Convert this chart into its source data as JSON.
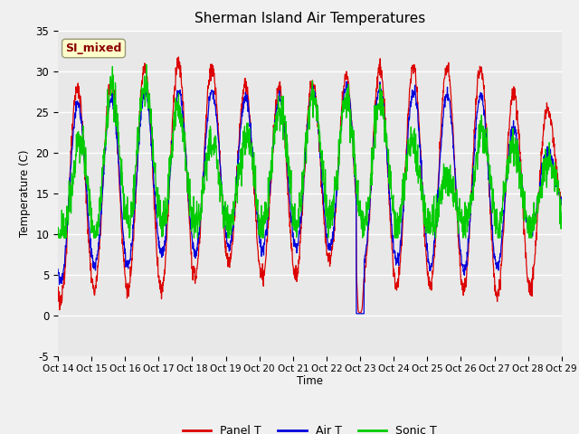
{
  "title": "Sherman Island Air Temperatures",
  "xlabel": "Time",
  "ylabel": "Temperature (C)",
  "ylim": [
    -5,
    35
  ],
  "yticks": [
    -5,
    0,
    5,
    10,
    15,
    20,
    25,
    30,
    35
  ],
  "x_tick_labels": [
    "Oct 14",
    "Oct 15",
    "Oct 16",
    "Oct 17",
    "Oct 18",
    "Oct 19",
    "Oct 20",
    "Oct 21",
    "Oct 22",
    "Oct 23",
    "Oct 24",
    "Oct 25",
    "Oct 26",
    "Oct 27",
    "Oct 28",
    "Oct 29"
  ],
  "legend_labels": [
    "Panel T",
    "Air T",
    "Sonic T"
  ],
  "legend_colors": [
    "#dd0000",
    "#0000dd",
    "#00cc00"
  ],
  "annotation_text": "SI_mixed",
  "annotation_color": "#8B0000",
  "annotation_bg": "#ffffcc",
  "fig_bg": "#f0f0f0",
  "plot_bg": "#e8e8e8",
  "line_colors": {
    "panel": "#dd0000",
    "air": "#0000dd",
    "sonic": "#00cc00"
  },
  "figsize": [
    6.4,
    4.8
  ],
  "dpi": 100
}
